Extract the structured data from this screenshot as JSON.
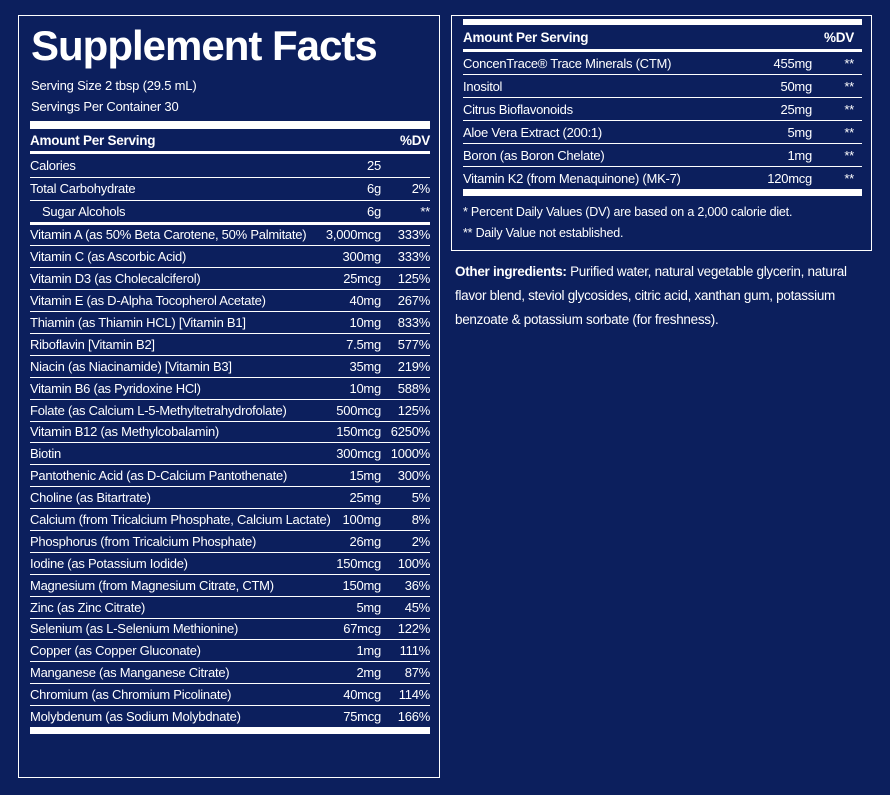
{
  "left": {
    "title": "Supplement Facts",
    "serving_size": "Serving Size 2 tbsp (29.5 mL)",
    "servings": "Servings Per Container 30",
    "header": [
      "Amount Per Serving",
      "%DV"
    ],
    "rows": [
      [
        "Calories",
        "25",
        ""
      ],
      [
        "Total Carbohydrate",
        "6g",
        "2%"
      ],
      [
        "Sugar Alcohols",
        "6g",
        "**"
      ],
      [
        "Vitamin A (as 50% Beta Carotene, 50% Palmitate)",
        "3,000mcg",
        "333%"
      ],
      [
        "Vitamin C (as Ascorbic Acid)",
        "300mg",
        "333%"
      ],
      [
        "Vitamin D3 (as Cholecalciferol)",
        "25mcg",
        "125%"
      ],
      [
        "Vitamin E (as D-Alpha Tocopherol Acetate)",
        "40mg",
        "267%"
      ],
      [
        "Thiamin (as Thiamin HCL) [Vitamin B1]",
        "10mg",
        "833%"
      ],
      [
        "Riboflavin [Vitamin B2]",
        "7.5mg",
        "577%"
      ],
      [
        "Niacin (as Niacinamide) [Vitamin B3]",
        "35mg",
        "219%"
      ],
      [
        "Vitamin B6 (as Pyridoxine HCl)",
        "10mg",
        "588%"
      ],
      [
        "Folate  (as Calcium L-5-Methyltetrahydrofolate)",
        "500mcg",
        "125%"
      ],
      [
        "Vitamin B12 (as Methylcobalamin)",
        "150mcg",
        "6250%"
      ],
      [
        "Biotin",
        "300mcg",
        "1000%"
      ],
      [
        "Pantothenic Acid (as D-Calcium Pantothenate)",
        "15mg",
        "300%"
      ],
      [
        "Choline (as Bitartrate)",
        "25mg",
        "5%"
      ],
      [
        "Calcium (from Tricalcium Phosphate, Calcium Lactate)",
        "100mg",
        "8%"
      ],
      [
        "Phosphorus (from Tricalcium Phosphate)",
        "26mg",
        "2%"
      ],
      [
        "Iodine (as Potassium Iodide)",
        "150mcg",
        "100%"
      ],
      [
        "Magnesium (from Magnesium Citrate, CTM)",
        "150mg",
        "36%"
      ],
      [
        "Zinc (as Zinc Citrate)",
        "5mg",
        "45%"
      ],
      [
        "Selenium (as L-Selenium Methionine)",
        "67mcg",
        "122%"
      ],
      [
        "Copper (as Copper Gluconate)",
        "1mg",
        "111%"
      ],
      [
        "Manganese  (as Manganese Citrate)",
        "2mg",
        "87%"
      ],
      [
        "Chromium (as Chromium Picolinate)",
        "40mcg",
        "114%"
      ],
      [
        "Molybdenum (as Sodium Molybdnate)",
        "75mcg",
        "166%"
      ]
    ]
  },
  "right": {
    "header": [
      "Amount Per Serving",
      "%DV"
    ],
    "rows": [
      [
        "ConcenTrace® Trace Minerals (CTM)",
        "455mg",
        "**"
      ],
      [
        "Inositol",
        "50mg",
        "**"
      ],
      [
        "Citrus Bioflavonoids",
        "25mg",
        "**"
      ],
      [
        "Aloe Vera Extract (200:1)",
        "5mg",
        "**"
      ],
      [
        "Boron (as Boron Chelate)",
        "1mg",
        "**"
      ],
      [
        "Vitamin K2 (from Menaquinone) (MK-7)",
        "120mcg",
        "**"
      ]
    ],
    "footnotes": [
      "* Percent Daily Values (DV) are based on a 2,000 calorie diet.",
      "** Daily Value not established."
    ],
    "other_label": "Other ingredients:",
    "other_text": "Purified water, natural vegetable glycerin, natural flavor blend, steviol glycosides, citric acid, xanthan gum, potassium benzoate & potassium sorbate (for freshness)."
  }
}
